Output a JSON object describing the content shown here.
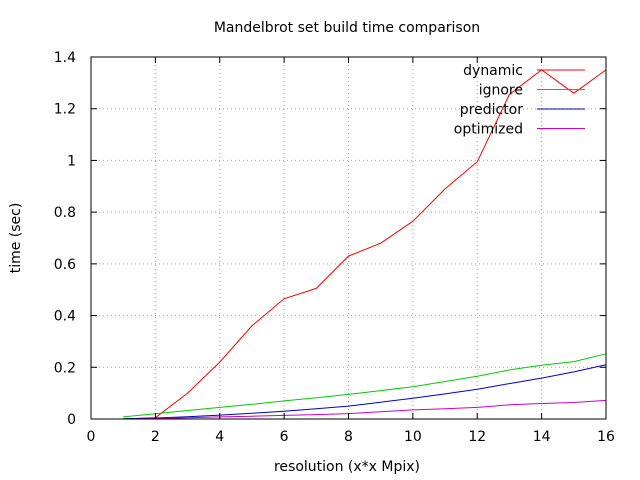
{
  "chart_data": {
    "type": "line",
    "title": "Mandelbrot set build time comparison",
    "xlabel": "resolution (x*x Mpix)",
    "ylabel": "time (sec)",
    "xlim": [
      0,
      16
    ],
    "ylim": [
      0,
      1.4
    ],
    "x_ticks": [
      "0",
      "2",
      "4",
      "6",
      "8",
      "10",
      "12",
      "14",
      "16"
    ],
    "y_ticks": [
      "0",
      "0.2",
      "0.4",
      "0.6",
      "0.8",
      "1",
      "1.2",
      "1.4"
    ],
    "grid": true,
    "legend_position": "top-right",
    "series": [
      {
        "name": "dynamic",
        "color": "#ff0000",
        "x": [
          1,
          2,
          3,
          4,
          5,
          6,
          7,
          8,
          9,
          10,
          11,
          12,
          13,
          14,
          15,
          16
        ],
        "values": [
          0.0,
          0.005,
          0.1,
          0.22,
          0.36,
          0.465,
          0.505,
          0.63,
          0.68,
          0.765,
          0.89,
          0.995,
          1.255,
          1.35,
          1.26,
          1.35
        ]
      },
      {
        "name": "ignore",
        "color": "#00cc00",
        "x": [
          1,
          2,
          3,
          4,
          5,
          6,
          7,
          8,
          9,
          10,
          11,
          12,
          13,
          14,
          15,
          16
        ],
        "values": [
          0.008,
          0.02,
          0.033,
          0.045,
          0.057,
          0.07,
          0.082,
          0.095,
          0.11,
          0.125,
          0.145,
          0.165,
          0.19,
          0.208,
          0.222,
          0.252
        ]
      },
      {
        "name": "predictor",
        "color": "#0000cc",
        "x": [
          1,
          2,
          3,
          4,
          5,
          6,
          7,
          8,
          9,
          10,
          11,
          12,
          13,
          14,
          15,
          16
        ],
        "values": [
          0.001,
          0.004,
          0.009,
          0.015,
          0.022,
          0.03,
          0.04,
          0.05,
          0.065,
          0.08,
          0.097,
          0.115,
          0.137,
          0.158,
          0.182,
          0.21
        ]
      },
      {
        "name": "optimized",
        "color": "#cc00cc",
        "x": [
          1,
          2,
          3,
          4,
          5,
          6,
          7,
          8,
          9,
          10,
          11,
          12,
          13,
          14,
          15,
          16
        ],
        "values": [
          0.0,
          0.002,
          0.005,
          0.008,
          0.011,
          0.014,
          0.017,
          0.021,
          0.028,
          0.035,
          0.04,
          0.045,
          0.055,
          0.06,
          0.064,
          0.072
        ]
      }
    ]
  }
}
